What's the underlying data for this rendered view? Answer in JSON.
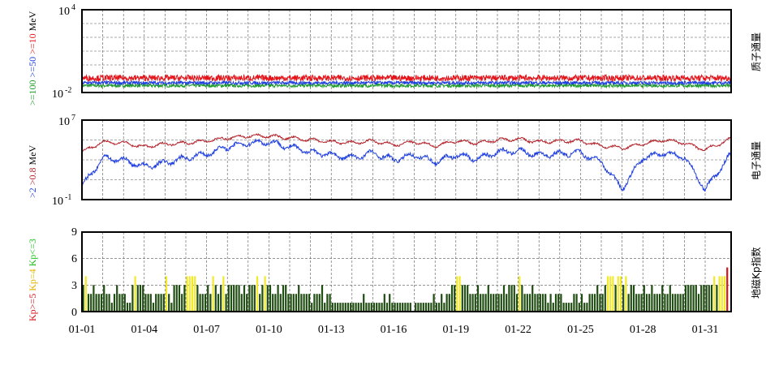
{
  "colors": {
    "red": "#e4141b",
    "blue": "#1f3fe0",
    "green": "#1e9a2b",
    "dark_green": "#1f4d12",
    "yellow": "#f2e92a",
    "kp_red": "#d2151c",
    "maroon": "#b4222a",
    "grid": "#555555"
  },
  "panels": {
    "proton": {
      "side_label": "质子通量",
      "legend": [
        {
          "text": ">=100",
          "color": "#1e9a2b"
        },
        {
          "text": ">=50",
          "color": "#1f3fe0"
        },
        {
          "text": ">=10",
          "color": "#e4141b"
        },
        {
          "text": "MeV",
          "color": "#000000"
        }
      ],
      "ytick_top": {
        "base": "10",
        "exp": "4"
      },
      "ytick_bottom": {
        "base": "10",
        "exp": "-2"
      }
    },
    "electron": {
      "side_label": "电子通量",
      "legend": [
        {
          "text": ">2",
          "color": "#1f3fe0"
        },
        {
          "text": ">0.8",
          "color": "#b4222a"
        },
        {
          "text": "MeV",
          "color": "#000000"
        }
      ],
      "ytick_top": {
        "base": "10",
        "exp": "7"
      },
      "ytick_bottom": {
        "base": "10",
        "exp": "-1"
      }
    },
    "kp": {
      "side_label": "地磁Kp指数",
      "legend": [
        {
          "text": "Kp>=5",
          "color": "#d2151c"
        },
        {
          "text": "Kp=4",
          "color": "#e3b400"
        },
        {
          "text": "Kp<=3",
          "color": "#1fc21f"
        }
      ],
      "yticks": [
        "9",
        "6",
        "3",
        "0"
      ]
    }
  },
  "x_tick_labels": [
    "01-01",
    "01-04",
    "01-07",
    "01-10",
    "01-13",
    "01-16",
    "01-19",
    "01-22",
    "01-25",
    "01-28",
    "01-31"
  ],
  "chart_data": [
    {
      "type": "line",
      "name": "proton",
      "yscale": "log",
      "ylim_exp": [
        -2,
        4
      ],
      "x": "2025-01-01 .. 2025-02-01",
      "series": [
        {
          "name": ">=10",
          "typical_log10": -0.95,
          "noise": 0.22
        },
        {
          "name": ">=50",
          "typical_log10": -1.3,
          "noise": 0.12
        },
        {
          "name": ">=100",
          "typical_log10": -1.5,
          "noise": 0.12
        }
      ]
    },
    {
      "type": "line",
      "name": "electron",
      "yscale": "log",
      "ylim_exp": [
        -1,
        7
      ],
      "series": [
        {
          "name": ">0.8",
          "daily_log10": [
            3.8,
            4.8,
            4.7,
            4.3,
            4.6,
            4.7,
            4.9,
            5.2,
            5.4,
            5.4,
            5.2,
            5.0,
            4.8,
            4.7,
            4.9,
            4.5,
            4.8,
            4.4,
            4.9,
            4.7,
            5.0,
            5.1,
            4.8,
            4.9,
            4.9,
            4.4,
            4.2,
            4.6,
            5.0,
            4.7,
            4.0,
            4.9
          ]
        },
        {
          "name": ">2",
          "daily_log10": [
            0.3,
            3.2,
            3.0,
            2.3,
            2.7,
            3.2,
            3.6,
            4.3,
            4.7,
            4.8,
            4.3,
            3.8,
            3.5,
            3.2,
            3.7,
            3.0,
            3.5,
            2.8,
            3.5,
            3.1,
            3.8,
            3.9,
            3.5,
            3.6,
            3.7,
            2.8,
            0.1,
            3.2,
            3.7,
            3.3,
            0.0,
            2.9
          ]
        }
      ]
    },
    {
      "type": "bar",
      "name": "kp",
      "ylim": [
        0,
        9
      ],
      "three_hour_kp": [
        [
          3,
          4,
          2,
          2,
          3,
          2,
          2,
          2
        ],
        [
          3,
          2,
          2,
          1,
          2,
          3,
          2,
          2
        ],
        [
          2,
          1,
          1,
          3,
          4,
          3,
          3,
          3
        ],
        [
          2,
          2,
          2,
          1,
          2,
          2,
          2,
          2
        ],
        [
          4,
          2,
          1,
          3,
          3,
          3,
          2,
          3
        ],
        [
          4,
          4,
          4,
          4,
          3,
          2,
          2,
          2
        ],
        [
          3,
          2,
          4,
          3,
          2,
          3,
          4,
          2
        ],
        [
          3,
          3,
          3,
          3,
          3,
          2,
          3,
          2
        ],
        [
          3,
          3,
          3,
          4,
          2,
          3,
          4,
          3
        ],
        [
          3,
          2,
          2,
          3,
          2,
          3,
          3,
          2
        ],
        [
          2,
          2,
          2,
          3,
          2,
          2,
          2,
          2
        ],
        [
          1,
          2,
          2,
          2,
          3,
          1,
          2,
          2
        ],
        [
          1,
          1,
          1,
          1,
          1,
          1,
          1,
          1
        ],
        [
          1,
          1,
          1,
          1,
          2,
          1,
          1,
          1
        ],
        [
          1,
          1,
          1,
          1,
          2,
          1,
          2,
          1
        ],
        [
          1,
          1,
          1,
          1,
          1,
          1,
          1,
          0
        ],
        [
          1,
          1,
          1,
          1,
          1,
          1,
          1,
          2
        ],
        [
          1,
          1,
          2,
          1,
          2,
          2,
          3,
          3
        ],
        [
          4,
          4,
          3,
          3,
          3,
          2,
          2,
          2
        ],
        [
          3,
          2,
          2,
          2,
          3,
          2,
          2,
          2
        ],
        [
          2,
          2,
          3,
          2,
          3,
          3,
          3,
          2
        ],
        [
          4,
          3,
          2,
          2,
          2,
          3,
          2,
          2
        ],
        [
          2,
          2,
          2,
          1,
          2,
          1,
          2,
          2
        ],
        [
          2,
          1,
          1,
          1,
          1,
          2,
          2,
          1
        ],
        [
          2,
          1,
          1,
          2,
          2,
          2,
          3,
          2
        ],
        [
          2,
          3,
          4,
          4,
          4,
          3,
          4,
          4
        ],
        [
          3,
          4,
          2,
          3,
          3,
          2,
          2,
          2
        ],
        [
          3,
          2,
          2,
          3,
          2,
          2,
          2,
          3
        ],
        [
          2,
          2,
          3,
          2,
          2,
          2,
          2,
          2
        ],
        [
          3,
          3,
          3,
          3,
          3,
          2,
          3,
          3
        ],
        [
          3,
          3,
          3,
          4,
          3,
          4,
          4,
          4
        ],
        [
          5
        ]
      ]
    }
  ]
}
